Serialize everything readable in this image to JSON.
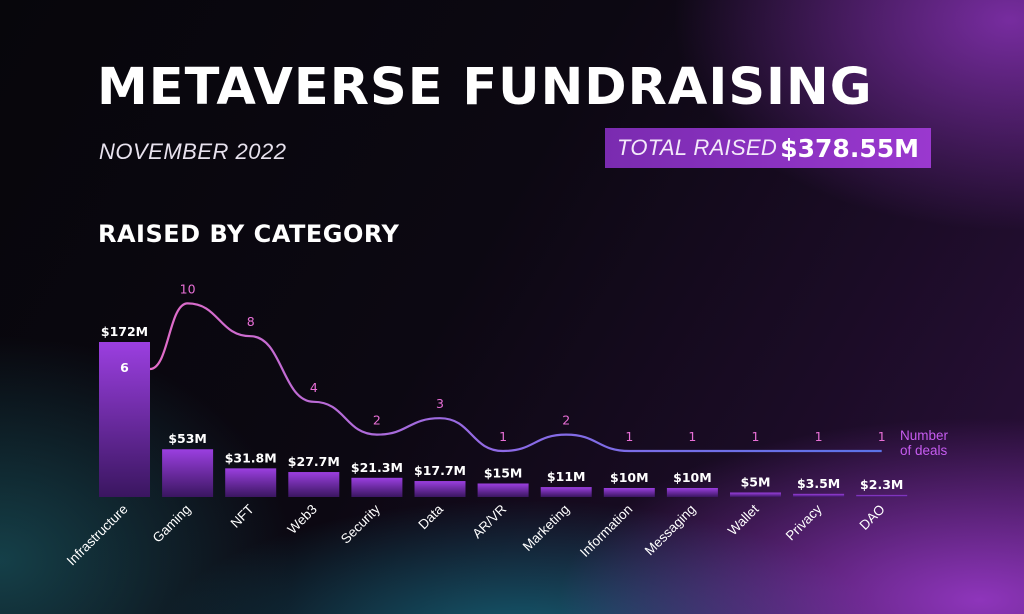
{
  "header": {
    "title": "METAVERSE FUNDRAISING",
    "subtitle": "NOVEMBER 2022",
    "total_label": "TOTAL RAISED",
    "total_value": "$378.55M"
  },
  "section_title": "RAISED BY CATEGORY",
  "colors": {
    "bar_top": "#9b3fe0",
    "bar_bottom": "#3a1660",
    "line_start": "#e36cc8",
    "line_end": "#5a73e8",
    "deal_label": "#e86fd6",
    "legend": "#c65cf0"
  },
  "chart_data": {
    "type": "bar",
    "categories": [
      "Infrastructure",
      "Gaming",
      "NFT",
      "Web3",
      "Security",
      "Data",
      "AR/VR",
      "Marketing",
      "Information",
      "Messaging",
      "Wallet",
      "Privacy",
      "DAO"
    ],
    "series": [
      {
        "values": [
          172,
          53,
          31.8,
          27.7,
          21.3,
          17.7,
          15,
          11,
          10,
          10,
          5,
          3.5,
          2.3
        ],
        "labels": [
          "$172M",
          "$53M",
          "$31.8M",
          "$27.7M",
          "$21.3M",
          "$17.7M",
          "$15M",
          "$11M",
          "$10M",
          "$10M",
          "$5M",
          "$3.5M",
          "$2.3M"
        ]
      },
      {
        "name": "Number of deals",
        "type": "line",
        "values": [
          6,
          10,
          8,
          4,
          2,
          3,
          1,
          2,
          1,
          1,
          1,
          1,
          1
        ]
      }
    ],
    "legend_line1": "Number",
    "legend_line2": "of deals",
    "legend": "right"
  }
}
